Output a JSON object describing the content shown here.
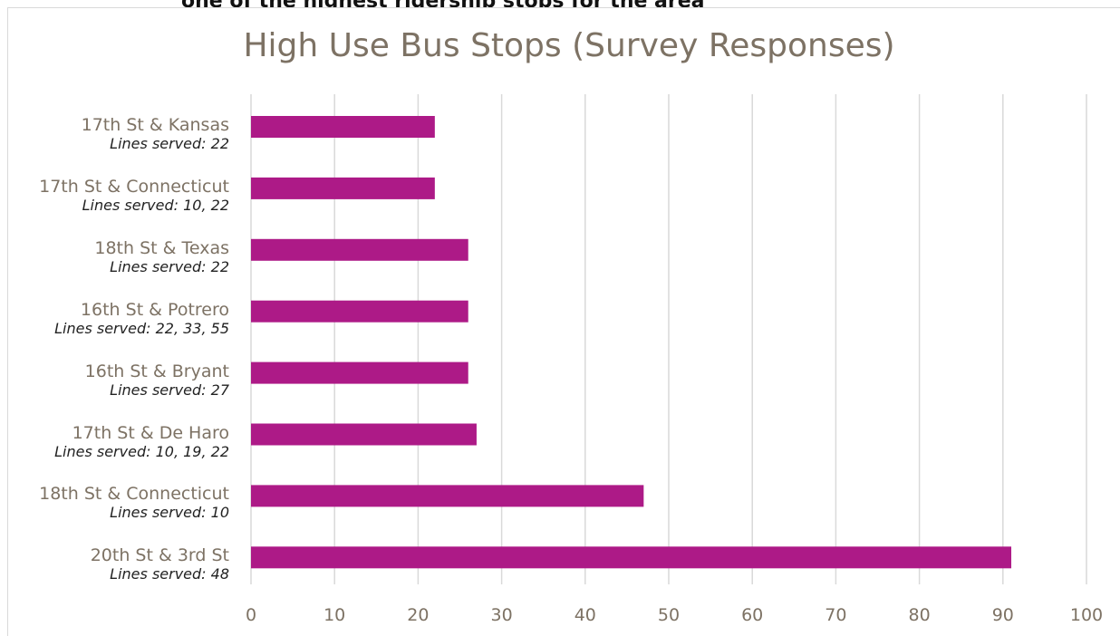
{
  "header": {
    "caption": "one of the highest ridership stops for the area"
  },
  "chart_data": {
    "type": "bar",
    "orientation": "horizontal",
    "title": "High Use Bus Stops (Survey Responses)",
    "xlabel": "",
    "ylabel": "",
    "xlim": [
      0,
      100
    ],
    "xticks": [
      0,
      10,
      20,
      30,
      40,
      50,
      60,
      70,
      80,
      90,
      100
    ],
    "grid": "vertical",
    "bar_color": "#ad1a87",
    "categories": [
      {
        "name": "17th St & Kansas",
        "sub": "Lines served: 22",
        "value": 22
      },
      {
        "name": "17th St & Connecticut",
        "sub": "Lines served: 10, 22",
        "value": 22
      },
      {
        "name": "18th St & Texas",
        "sub": "Lines served: 22",
        "value": 26
      },
      {
        "name": "16th St & Potrero",
        "sub": "Lines served: 22, 33, 55",
        "value": 26
      },
      {
        "name": "16th St & Bryant",
        "sub": "Lines served: 27",
        "value": 26
      },
      {
        "name": "17th St & De Haro",
        "sub": "Lines served: 10, 19, 22",
        "value": 27
      },
      {
        "name": "18th St & Connecticut",
        "sub": "Lines served: 10",
        "value": 47
      },
      {
        "name": "20th St & 3rd St",
        "sub": "Lines served: 48",
        "value": 91
      }
    ]
  }
}
